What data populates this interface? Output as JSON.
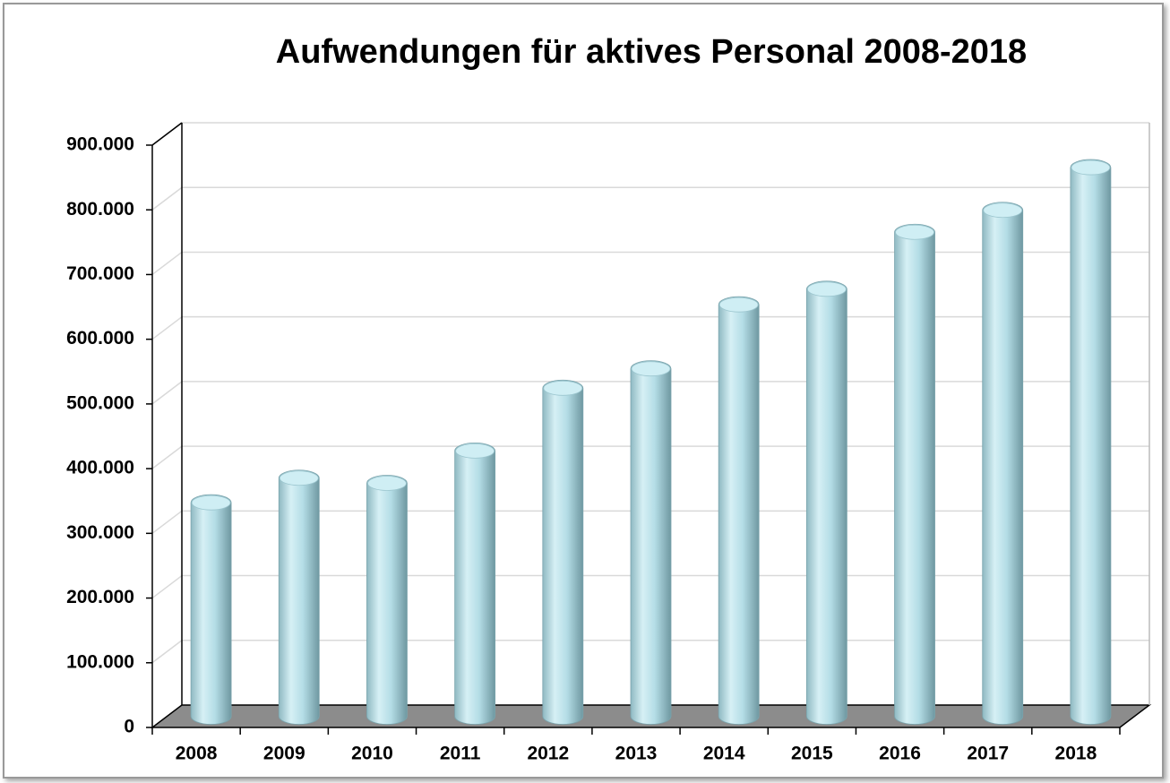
{
  "chart_data": {
    "type": "bar",
    "title": "Aufwendungen für aktives Personal 2008-2018",
    "categories": [
      "2008",
      "2009",
      "2010",
      "2011",
      "2012",
      "2013",
      "2014",
      "2015",
      "2016",
      "2017",
      "2018"
    ],
    "values": [
      330000,
      368000,
      360000,
      410000,
      507000,
      537000,
      636000,
      660000,
      748000,
      782000,
      848000
    ],
    "color": "#b4dde6",
    "ylim": [
      0,
      900000
    ],
    "yticks": [
      0,
      {
        "value": 100000,
        "label": "100.000"
      },
      {
        "value": 200000,
        "label": "200.000"
      },
      {
        "value": 300000,
        "label": "300.000"
      },
      {
        "value": 400000,
        "label": "400.000"
      },
      {
        "value": 500000,
        "label": "500.000"
      },
      {
        "value": 600000,
        "label": "600.000"
      },
      {
        "value": 700000,
        "label": "700.000"
      },
      {
        "value": 800000,
        "label": "800.000"
      },
      {
        "value": 900000,
        "label": "900.000"
      }
    ],
    "grid": true
  }
}
